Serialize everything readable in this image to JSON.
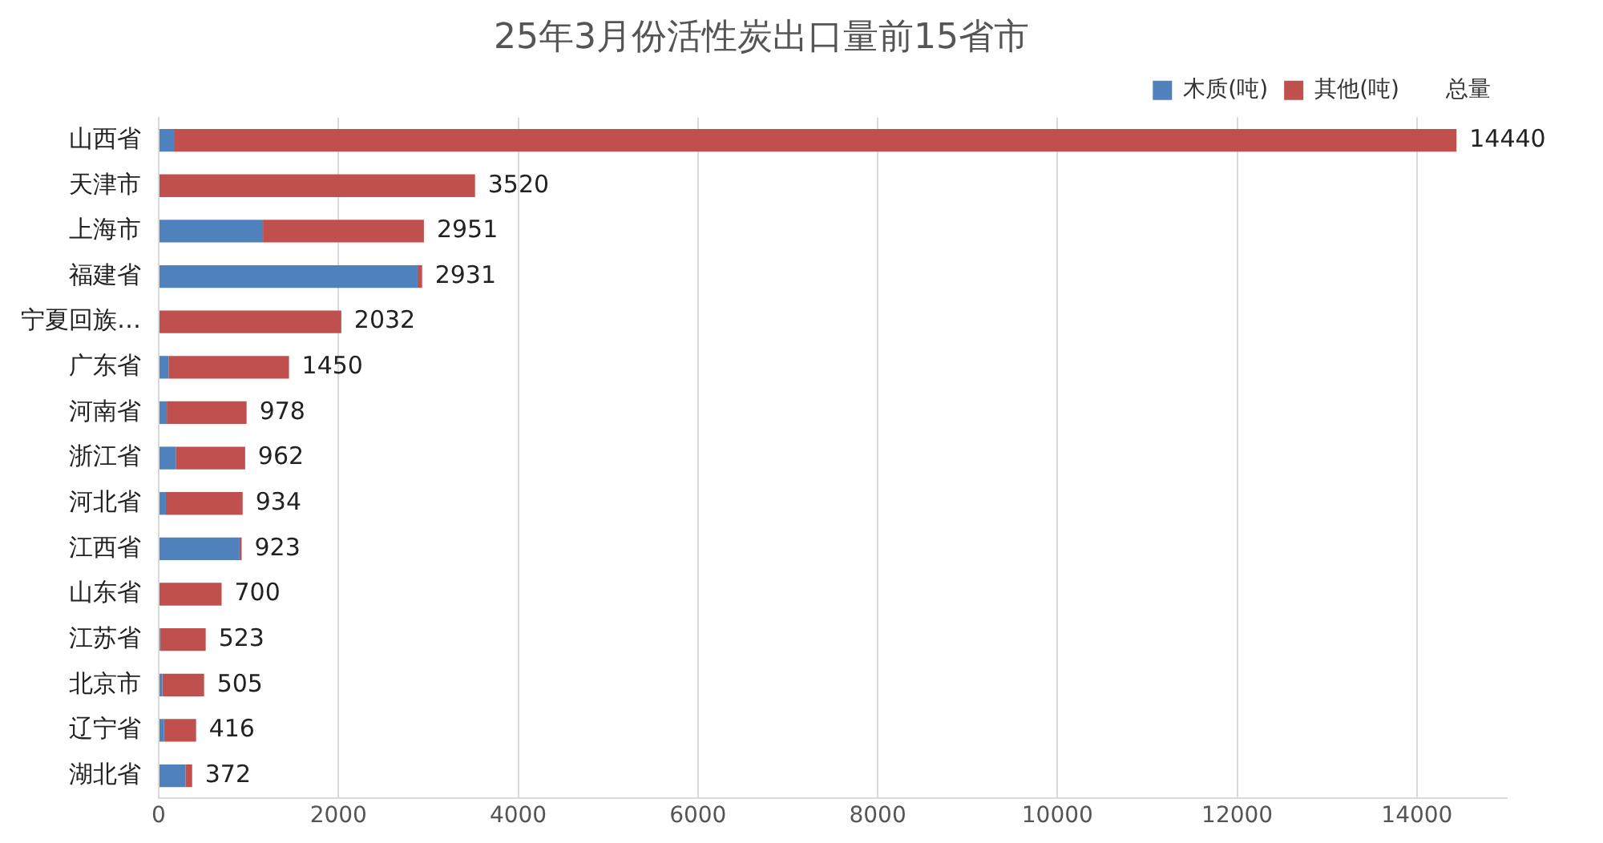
{
  "chart_data": {
    "type": "bar",
    "orientation": "horizontal",
    "stacked": true,
    "title": "25年3月份活性炭出口量前15省市",
    "categories": [
      "山西省",
      "天津市",
      "上海市",
      "福建省",
      "宁夏回族…",
      "广东省",
      "河南省",
      "浙江省",
      "河北省",
      "江西省",
      "山东省",
      "江苏省",
      "北京市",
      "辽宁省",
      "湖北省"
    ],
    "series": [
      {
        "name": "木质(吨)",
        "color": "#4f81bd",
        "values": [
          170,
          0,
          1160,
          2880,
          0,
          110,
          90,
          190,
          80,
          900,
          0,
          20,
          40,
          60,
          300
        ]
      },
      {
        "name": "其他(吨)",
        "color": "#c0504d",
        "values": [
          14270,
          3520,
          1791,
          51,
          2032,
          1340,
          888,
          772,
          854,
          23,
          700,
          503,
          465,
          356,
          72
        ]
      }
    ],
    "totals": [
      "14440",
      "3520",
      "2951",
      "2931",
      "2032",
      "1450",
      "978",
      "962",
      "934",
      "923",
      "700",
      "523",
      "505",
      "416",
      "372"
    ],
    "legend_title": "总量",
    "xlim": [
      0,
      15000
    ],
    "xticks": [
      0,
      2000,
      4000,
      6000,
      8000,
      10000,
      12000,
      14000
    ],
    "grid": "x",
    "legend": "top"
  }
}
